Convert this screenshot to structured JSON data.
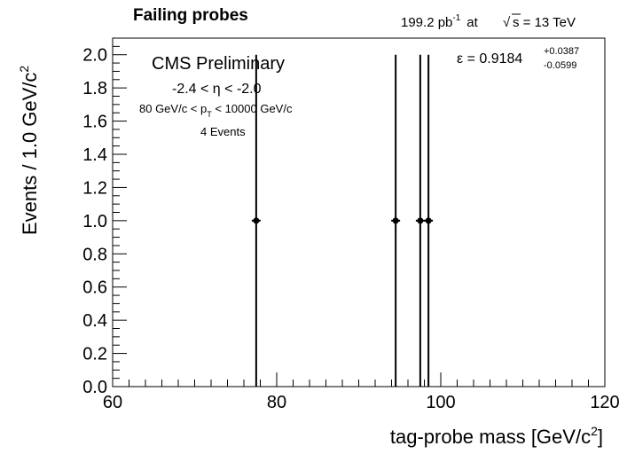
{
  "chart_data": {
    "type": "scatter",
    "title": "Failing probes",
    "lumi_value": "199.2 pb",
    "lumi_exp": "-1",
    "lumi_at": "at",
    "sqrt_s": "s = 13 TeV",
    "xlabel_main": "tag-probe mass [GeV/c",
    "xlabel_sup": "2",
    "xlabel_end": "]",
    "ylabel_main": "Events / 1.0 GeV/c",
    "ylabel_sup": "2",
    "xlim": [
      60,
      120
    ],
    "ylim": [
      0,
      2.1
    ],
    "x_ticks": [
      60,
      80,
      100,
      120
    ],
    "y_ticks": [
      0.0,
      0.2,
      0.4,
      0.6,
      0.8,
      1.0,
      1.2,
      1.4,
      1.6,
      1.8,
      2.0
    ],
    "x_tick_labels": [
      "60",
      "80",
      "100",
      "120"
    ],
    "y_tick_labels": [
      "0.0",
      "0.2",
      "0.4",
      "0.6",
      "0.8",
      "1.0",
      "1.2",
      "1.4",
      "1.6",
      "1.8",
      "2.0"
    ],
    "points": [
      {
        "x": 77.5,
        "y": 1.0,
        "err_low": 1.0,
        "err_high": 1.0
      },
      {
        "x": 94.5,
        "y": 1.0,
        "err_low": 1.0,
        "err_high": 1.0
      },
      {
        "x": 97.5,
        "y": 1.0,
        "err_low": 1.0,
        "err_high": 1.0
      },
      {
        "x": 98.5,
        "y": 1.0,
        "err_low": 1.0,
        "err_high": 1.0
      }
    ],
    "annotations": {
      "experiment": "CMS Preliminary",
      "eta_range": "-2.4 < η < -2.0",
      "pt_range_pre": "80 GeV/c < p",
      "pt_sub": "T",
      "pt_range_post": " < 10000 GeV/c",
      "events": "4 Events",
      "efficiency_label": "ε = 0.9184",
      "efficiency_plus": "+0.0387",
      "efficiency_minus": "-0.0599"
    }
  }
}
